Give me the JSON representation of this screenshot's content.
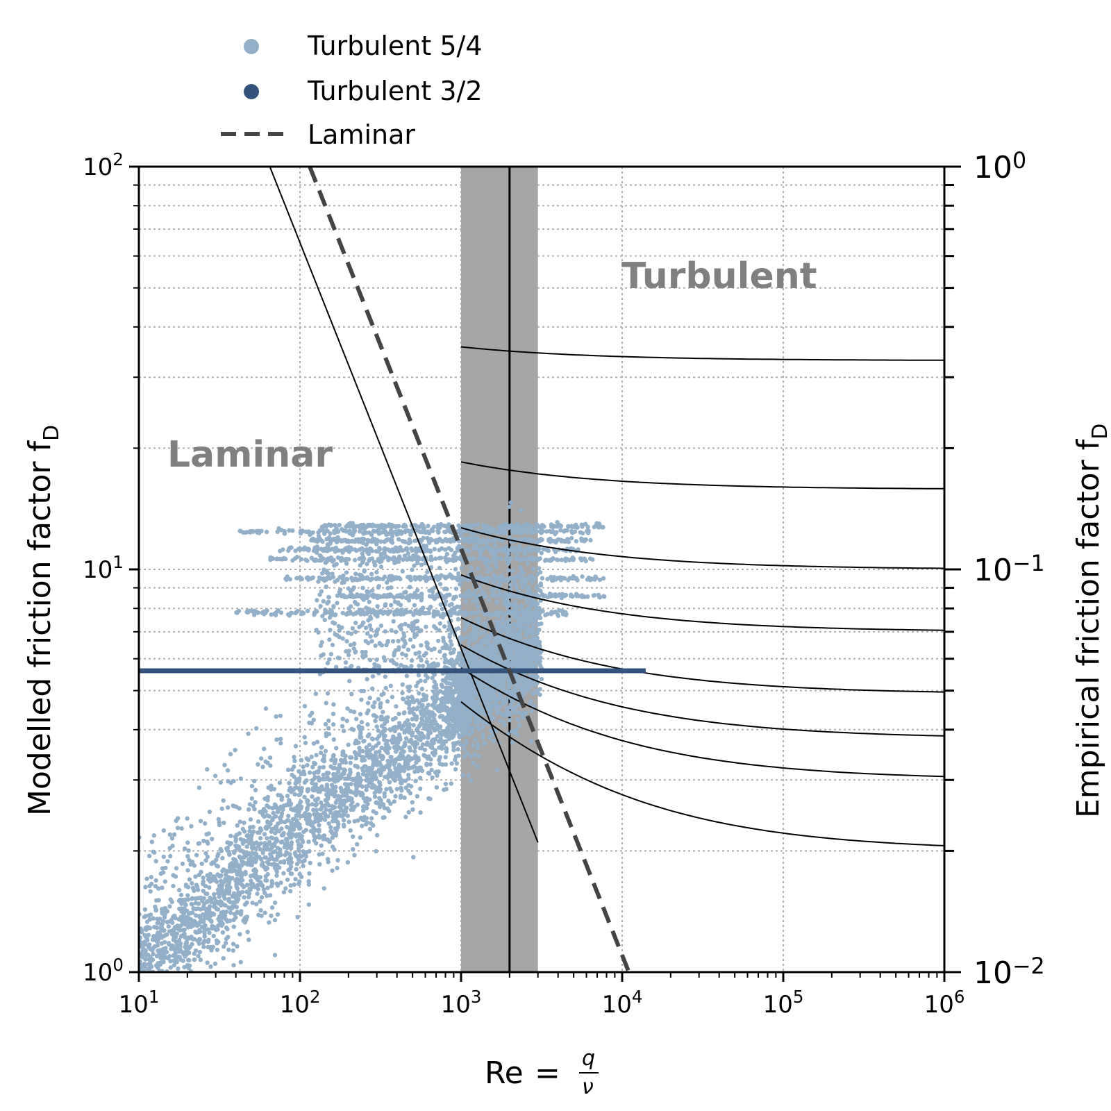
{
  "chart_data": {
    "type": "scatter",
    "x_scale": "log",
    "y_scale": "log",
    "xlim": [
      10,
      1000000
    ],
    "ylim": [
      1,
      100
    ],
    "y2lim": [
      0.01,
      1
    ],
    "xlabel": "Re = q/ν",
    "ylabel": "Modelled friction factor f",
    "ylabel_sub": "D",
    "y2label": "Empirical friction factor f",
    "y2label_sub": "D",
    "x_ticks": [
      {
        "value": 10,
        "base": "10",
        "exp": "1"
      },
      {
        "value": 100,
        "base": "10",
        "exp": "2"
      },
      {
        "value": 1000,
        "base": "10",
        "exp": "3"
      },
      {
        "value": 10000,
        "base": "10",
        "exp": "4"
      },
      {
        "value": 100000,
        "base": "10",
        "exp": "5"
      },
      {
        "value": 1000000,
        "base": "10",
        "exp": "6"
      }
    ],
    "y_ticks": [
      {
        "value": 1,
        "base": "10",
        "exp": "0"
      },
      {
        "value": 10,
        "base": "10",
        "exp": "1"
      },
      {
        "value": 100,
        "base": "10",
        "exp": "2"
      }
    ],
    "y2_ticks": [
      {
        "value": 0.01,
        "base": "10",
        "exp": "−2"
      },
      {
        "value": 0.1,
        "base": "10",
        "exp": "−1"
      },
      {
        "value": 1,
        "base": "10",
        "exp": "0"
      }
    ],
    "grid": true,
    "legend_position": "top-left",
    "series": [
      {
        "name": "Turbulent 5/4",
        "kind": "scatter",
        "color": "#94afc8",
        "description_points": [
          [
            10,
            1.0
          ],
          [
            100,
            2.3
          ],
          [
            1000,
            4.5
          ],
          [
            2000,
            5.5
          ],
          [
            3000,
            6.0
          ]
        ],
        "plateau_values": [
          12.8,
          12.4,
          11.8,
          11.2,
          10.6,
          9.5,
          8.6,
          7.8
        ]
      },
      {
        "name": "Turbulent 3/2",
        "kind": "line",
        "color": "#34527a",
        "x": [
          10,
          14000
        ],
        "y": [
          5.6,
          5.6
        ]
      },
      {
        "name": "Laminar",
        "kind": "dashed",
        "color": "#444444",
        "x": [
          115,
          11000
        ],
        "y": [
          100,
          1.0
        ]
      }
    ],
    "reference_lines": {
      "critical_re": 2000,
      "transition_band": [
        1000,
        3000
      ],
      "empirical_laminar": {
        "x": [
          65,
          3000
        ],
        "y2": [
          1.0,
          0.021
        ]
      },
      "empirical_turbulent_curves_y2": [
        0.33,
        0.158,
        0.1,
        0.07,
        0.049,
        0.038,
        0.03,
        0.02
      ]
    },
    "annotations": {
      "laminar": "Laminar",
      "turbulent": "Turbulent"
    }
  }
}
